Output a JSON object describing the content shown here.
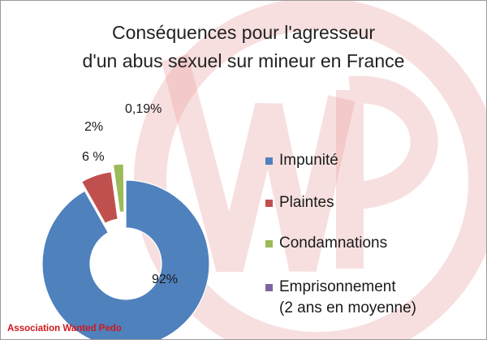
{
  "title_lines": [
    "Conséquences pour l'agresseur",
    "d'un abus sexuel sur mineur en France"
  ],
  "brand": "Association Wanted Pedo",
  "watermark": {
    "icon": "wp-logo",
    "color": "#e8a0a0"
  },
  "chart_data": {
    "type": "pie",
    "title": "Conséquences pour l'agresseur d'un abus sexuel sur mineur en France",
    "categories": [
      "Impunité",
      "Plaintes",
      "Condamnations",
      "Emprisonnement\n(2 ans en moyenne)"
    ],
    "values": [
      92,
      6,
      2,
      0.19
    ],
    "data_labels": [
      "92%",
      "6 %",
      "2%",
      "0,19%"
    ],
    "colors": [
      "#4f81bd",
      "#c0504d",
      "#9bbb59",
      "#8064a2"
    ],
    "legend_position": "right",
    "donut": true,
    "exploded": true
  }
}
